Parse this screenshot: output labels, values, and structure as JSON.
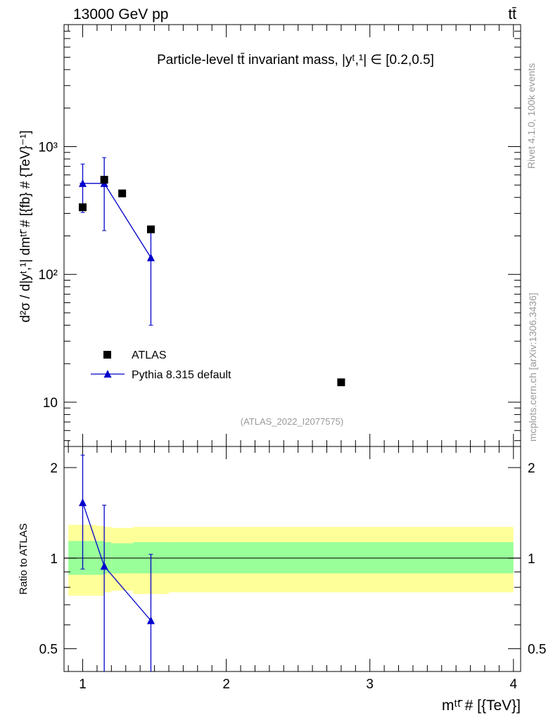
{
  "header": {
    "energy_label": "13000 GeV pp",
    "process_label": "tt̄"
  },
  "side_labels": {
    "rivet": "Rivet 4.1.0,  100k events",
    "mcplots": "mcplots.cern.ch [arXiv:1306.3436]"
  },
  "colors": {
    "data": "#000000",
    "mc": "#0000cc",
    "band_inner": "#99ff99",
    "band_outer": "#ffff99",
    "watermark": "#999999"
  },
  "chart_data": [
    {
      "type": "scatter",
      "panel": "main",
      "title": "Particle-level tt̄ invariant mass, |yᵗ,¹| ∈ [0.2,0.5]",
      "ylabel": "d²σ / d|yᵗ,¹| dmᵗᵗ̄ # [{fb} # {TeV}⁻¹]",
      "analysis_tag": "(ATLAS_2022_I2077575)",
      "yscale": "log",
      "xlim": [
        0.87,
        4.05
      ],
      "ylim": [
        4.5,
        9000
      ],
      "y_tick_labels": [
        {
          "value": 10,
          "label": "10"
        },
        {
          "value": 100,
          "label": "10²"
        },
        {
          "value": 1000,
          "label": "10³"
        }
      ],
      "legend": {
        "position": "bottom-left",
        "entries": [
          "ATLAS",
          "Pythia 8.315 default"
        ]
      },
      "series": [
        {
          "name": "ATLAS",
          "style": "square-marker",
          "points": [
            {
              "x": 1.0,
              "y": 335
            },
            {
              "x": 1.15,
              "y": 550
            },
            {
              "x": 1.275,
              "y": 430
            },
            {
              "x": 1.475,
              "y": 225
            },
            {
              "x": 2.8,
              "y": 14.3
            }
          ]
        },
        {
          "name": "Pythia 8.315 default",
          "style": "triangle-line",
          "points": [
            {
              "x": 1.0,
              "y": 515,
              "ylo": 305,
              "yhi": 730,
              "xlo": 0.98,
              "xhi": 1.15
            },
            {
              "x": 1.15,
              "y": 515,
              "ylo": 220,
              "yhi": 820
            },
            {
              "x": 1.475,
              "y": 135,
              "ylo": 40,
              "yhi": 225
            }
          ]
        }
      ]
    },
    {
      "type": "line",
      "panel": "ratio",
      "ylabel": "Ratio to ATLAS",
      "xlabel": "mᵗᵗ̄ # [{TeV}]",
      "yscale": "log",
      "xlim": [
        0.87,
        4.05
      ],
      "ylim": [
        0.42,
        2.35
      ],
      "x_tick_labels": [
        "1",
        "2",
        "3",
        "4"
      ],
      "x_ticks": [
        1,
        2,
        3,
        4
      ],
      "y_tick_labels": [
        {
          "value": 0.5,
          "label": "0.5"
        },
        {
          "value": 1,
          "label": "1"
        },
        {
          "value": 2,
          "label": "2"
        }
      ],
      "reference_line": 1.0,
      "uncertainty_bands": [
        {
          "x0": 0.9,
          "x1": 1.1,
          "inner": [
            0.88,
            1.14
          ],
          "outer": [
            0.75,
            1.29
          ]
        },
        {
          "x0": 1.1,
          "x1": 1.15,
          "inner": [
            0.88,
            1.14
          ],
          "outer": [
            0.75,
            1.28
          ]
        },
        {
          "x0": 1.15,
          "x1": 1.2,
          "inner": [
            0.89,
            1.13
          ],
          "outer": [
            0.77,
            1.27
          ]
        },
        {
          "x0": 1.2,
          "x1": 1.35,
          "inner": [
            0.89,
            1.12
          ],
          "outer": [
            0.78,
            1.26
          ]
        },
        {
          "x0": 1.35,
          "x1": 1.6,
          "inner": [
            0.89,
            1.13
          ],
          "outer": [
            0.76,
            1.27
          ]
        },
        {
          "x0": 1.6,
          "x1": 4.0,
          "inner": [
            0.89,
            1.13
          ],
          "outer": [
            0.77,
            1.27
          ]
        }
      ],
      "series": [
        {
          "name": "Pythia 8.315 default",
          "points": [
            {
              "x": 1.0,
              "y": 1.53,
              "ylo": 0.92,
              "yhi": 2.2
            },
            {
              "x": 1.15,
              "y": 0.94,
              "ylo": 0.4,
              "yhi": 1.5
            },
            {
              "x": 1.475,
              "y": 0.62,
              "ylo": 0.4,
              "yhi": 1.03
            }
          ]
        }
      ]
    }
  ]
}
